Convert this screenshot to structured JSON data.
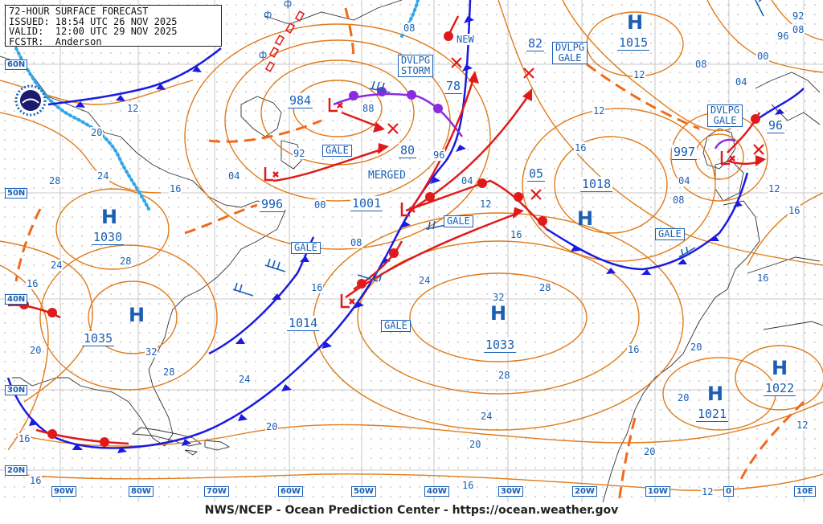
{
  "header": {
    "line1": "72-HOUR SURFACE FORECAST",
    "line2": "ISSUED: 18:54 UTC 26 NOV 2025",
    "line3": "VALID:  12:00 UTC 29 NOV 2025",
    "line4": "FCSTR:  Anderson"
  },
  "footer": "NWS/NCEP - Ocean Prediction Center - https://ocean.weather.gov",
  "lat_labels": [
    "60N",
    "50N",
    "40N",
    "30N",
    "20N"
  ],
  "lon_labels": [
    "90W",
    "80W",
    "70W",
    "60W",
    "50W",
    "40W",
    "30W",
    "20W",
    "10W",
    "0",
    "10E"
  ],
  "highs": [
    {
      "letter": "H",
      "value": "1030"
    },
    {
      "letter": "H",
      "value": "1035"
    },
    {
      "letter": "H",
      "value": "1033"
    },
    {
      "letter": "H",
      "value": "1015"
    },
    {
      "letter": "H",
      "value": "1018"
    },
    {
      "letter": "H",
      "value": "1021"
    },
    {
      "letter": "H",
      "value": "1022"
    }
  ],
  "lows": [
    {
      "value": "984"
    },
    {
      "value": "996"
    },
    {
      "value": "1001"
    },
    {
      "value": "1014"
    },
    {
      "value": "997"
    },
    {
      "value": "78"
    },
    {
      "value": "80"
    },
    {
      "value": "05"
    },
    {
      "value": "82"
    },
    {
      "value": "96"
    }
  ],
  "boxes": {
    "gale1": "GALE",
    "gale2": "GALE",
    "gale3": "GALE",
    "gale4": "GALE",
    "gale5": "GALE",
    "dvlpg_storm": "DVLPG\nSTORM",
    "dvlpg_gale1": "DVLPG\nGALE",
    "dvlpg_gale2": "DVLPG\nGALE"
  },
  "text_labels": {
    "merged": "MERGED",
    "new": "NEW"
  },
  "isobar_labels": [
    "12",
    "20",
    "24",
    "28",
    "16",
    "24",
    "28",
    "16",
    "20",
    "16",
    "28",
    "32",
    "24",
    "20",
    "16",
    "04",
    "00",
    "92",
    "88",
    "96",
    "04",
    "12",
    "08",
    "16",
    "16",
    "24",
    "20",
    "28",
    "32",
    "28",
    "24",
    "20",
    "16",
    "12",
    "08",
    "16",
    "12",
    "08",
    "04",
    "00",
    "92",
    "96",
    "04",
    "08",
    "12",
    "16",
    "20",
    "16",
    "20",
    "16",
    "12",
    "08",
    "12",
    "28"
  ],
  "colors": {
    "isobar": "#e07b1a",
    "warm": "#e01a1a",
    "cold": "#1a1ae0",
    "occluded": "#8a2be2",
    "label": "#1a5fb4",
    "trough": "#f06a1a",
    "ice": "#33a6e8"
  }
}
